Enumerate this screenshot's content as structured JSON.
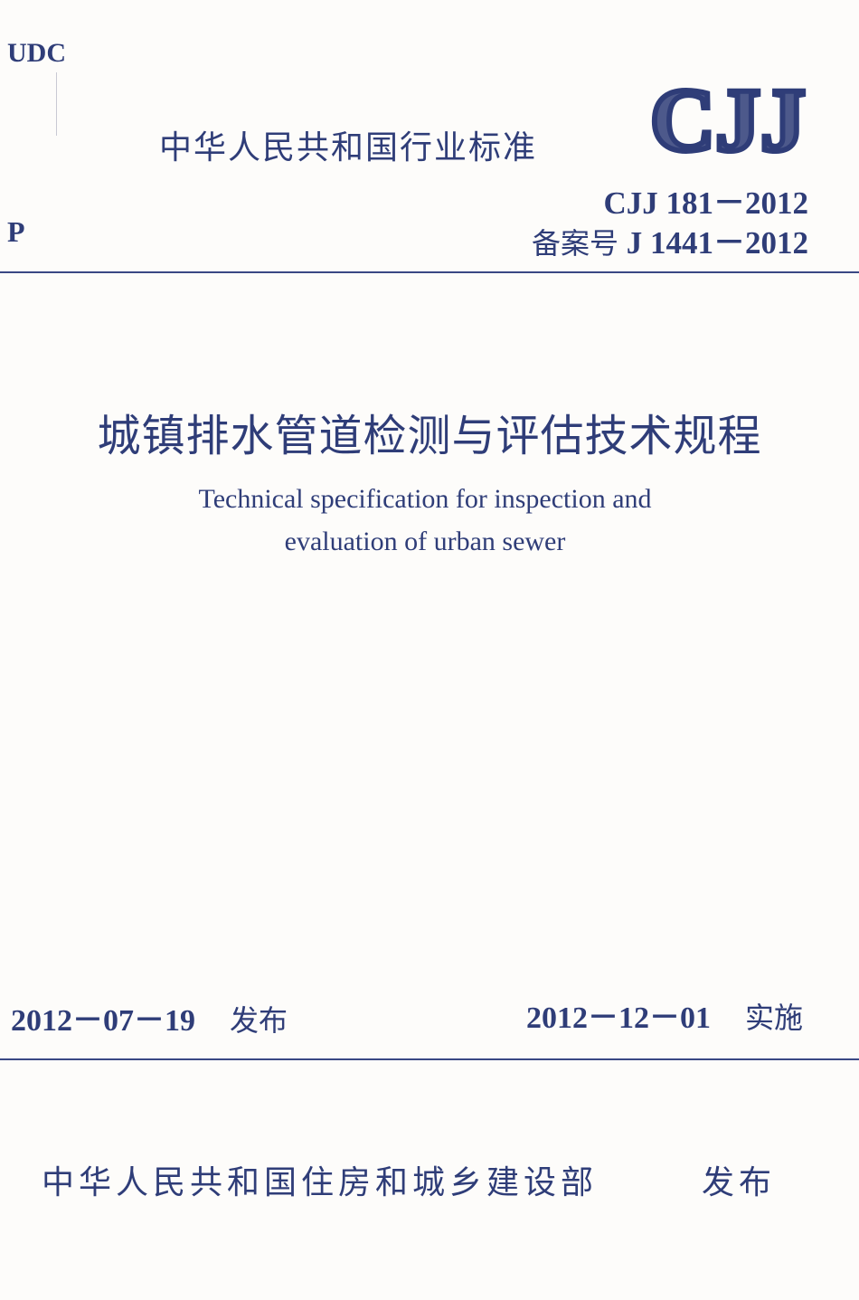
{
  "header": {
    "udc": "UDC",
    "category": "P",
    "industry_standard": "中华人民共和国行业标准",
    "logo_text": "CJJ",
    "standard_code": "CJJ 181－2012",
    "record_label": "备案号",
    "record_number": "J 1441－2012"
  },
  "title": {
    "chinese": "城镇排水管道检测与评估技术规程",
    "english_line1": "Technical specification for inspection and",
    "english_line2": "evaluation of urban sewer"
  },
  "dates": {
    "issue_date": "2012－07－19",
    "issue_label": "发布",
    "effective_date": "2012－12－01",
    "effective_label": "实施"
  },
  "publisher": {
    "name": "中华人民共和国住房和城乡建设部",
    "label": "发布"
  },
  "colors": {
    "ink": "#2f3d78",
    "paper": "#fdfcfa"
  }
}
